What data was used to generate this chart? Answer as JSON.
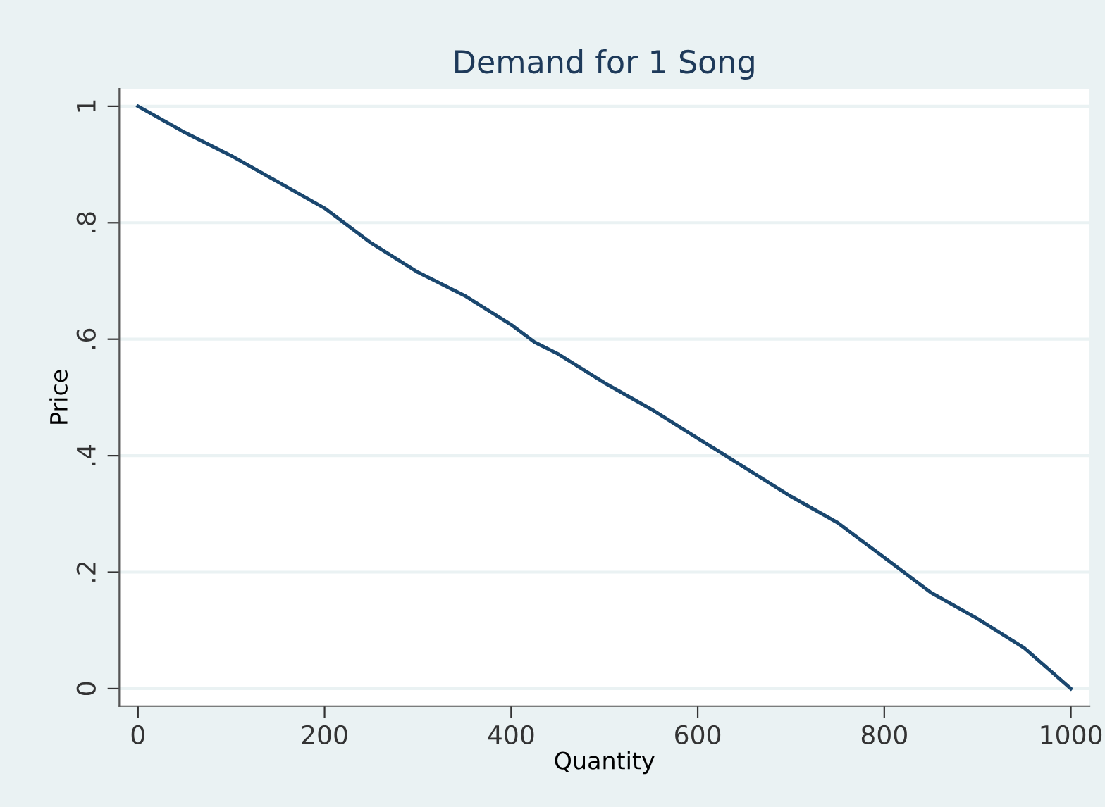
{
  "chart_data": {
    "type": "line",
    "title": "Demand for 1 Song",
    "xlabel": "Quantity",
    "ylabel": "Price",
    "x": [
      0,
      50,
      100,
      150,
      200,
      250,
      300,
      350,
      400,
      425,
      450,
      500,
      550,
      600,
      650,
      700,
      750,
      800,
      850,
      900,
      950,
      1000
    ],
    "series": [
      {
        "color": "#1a476f",
        "values": [
          1.0,
          0.955,
          0.915,
          0.87,
          0.825,
          0.765,
          0.715,
          0.675,
          0.625,
          0.595,
          0.575,
          0.525,
          0.48,
          0.43,
          0.38,
          0.33,
          0.285,
          0.225,
          0.165,
          0.12,
          0.07,
          0.0
        ]
      }
    ],
    "xlim": [
      -20,
      1020
    ],
    "ylim": [
      -0.03,
      1.03
    ],
    "xticks": [
      0,
      200,
      400,
      600,
      800,
      1000
    ],
    "yticks": [
      {
        "value": 0,
        "label": "0"
      },
      {
        "value": 0.2,
        "label": ".2"
      },
      {
        "value": 0.4,
        "label": ".4"
      },
      {
        "value": 0.6,
        "label": ".6"
      },
      {
        "value": 0.8,
        "label": ".8"
      },
      {
        "value": 1,
        "label": "1"
      }
    ],
    "grid": "y",
    "legend": false
  }
}
